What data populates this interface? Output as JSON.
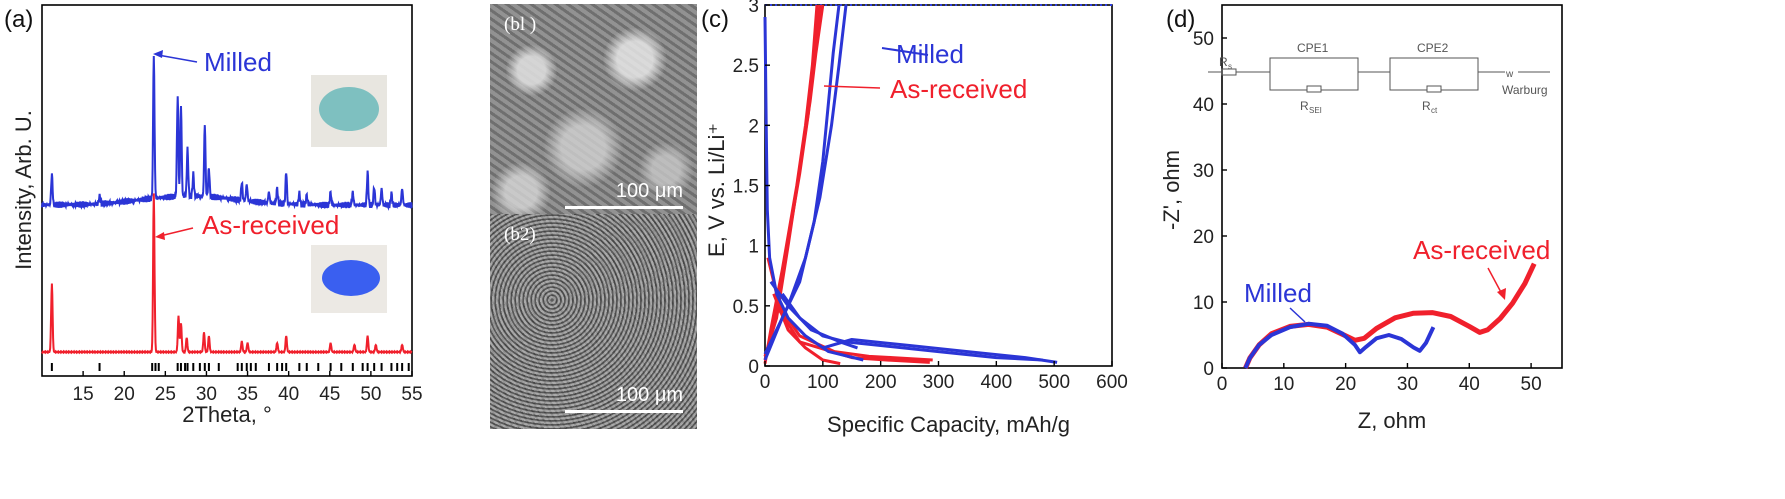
{
  "panels": {
    "a": "(a)",
    "b1": "(bl )",
    "b2": "(b2)",
    "c": "(c)",
    "d": "(d)"
  },
  "colors": {
    "milled": "#2b35d6",
    "as_received": "#f0202c",
    "photo_milled": "#7ec0c0",
    "photo_asreceived": "#3a5ff0"
  },
  "chart_data": [
    {
      "id": "a",
      "type": "line",
      "title": "",
      "xlabel": "2Theta, °",
      "ylabel": "Intensity, Arb. U.",
      "xlim": [
        10,
        55
      ],
      "xticks": [
        15,
        20,
        25,
        30,
        35,
        40,
        45,
        50,
        55
      ],
      "annotations": [
        "Milled",
        "As-received"
      ],
      "series": [
        {
          "name": "Milled",
          "baseline": 1.0,
          "peaks": [
            [
              11.2,
              0.85
            ],
            [
              17.0,
              0.2
            ],
            [
              23.6,
              4.0
            ],
            [
              26.5,
              2.8
            ],
            [
              26.9,
              2.5
            ],
            [
              27.7,
              1.3
            ],
            [
              28.4,
              0.6
            ],
            [
              29.8,
              2.0
            ],
            [
              30.3,
              0.8
            ],
            [
              34.3,
              0.5
            ],
            [
              34.9,
              0.45
            ],
            [
              37.6,
              0.3
            ],
            [
              38.6,
              0.4
            ],
            [
              39.7,
              0.9
            ],
            [
              41.3,
              0.3
            ],
            [
              42.2,
              0.25
            ],
            [
              45.1,
              0.35
            ],
            [
              47.8,
              0.35
            ],
            [
              49.6,
              0.9
            ],
            [
              50.4,
              0.5
            ],
            [
              51.3,
              0.45
            ],
            [
              52.5,
              0.3
            ],
            [
              53.8,
              0.45
            ]
          ]
        },
        {
          "name": "As-received",
          "baseline": 0.0,
          "peaks": [
            [
              11.2,
              1.9
            ],
            [
              23.6,
              4.4
            ],
            [
              26.6,
              1.0
            ],
            [
              26.9,
              0.8
            ],
            [
              27.6,
              0.4
            ],
            [
              29.7,
              0.55
            ],
            [
              30.3,
              0.45
            ],
            [
              34.3,
              0.3
            ],
            [
              35.0,
              0.25
            ],
            [
              38.6,
              0.25
            ],
            [
              39.7,
              0.45
            ],
            [
              45.1,
              0.25
            ],
            [
              48.0,
              0.2
            ],
            [
              49.6,
              0.45
            ],
            [
              50.6,
              0.2
            ],
            [
              53.8,
              0.2
            ]
          ]
        }
      ],
      "reference_ticks": [
        11.2,
        17.0,
        23.4,
        23.8,
        24.2,
        26.5,
        26.9,
        27.4,
        27.7,
        28.4,
        29.2,
        29.8,
        30.3,
        31.5,
        33.8,
        34.3,
        34.9,
        35.4,
        36.0,
        37.6,
        38.6,
        39.2,
        39.7,
        41.3,
        42.2,
        43.6,
        45.1,
        46.4,
        47.8,
        49.0,
        49.6,
        50.4,
        51.3,
        52.5,
        53.2,
        53.8,
        54.6
      ]
    },
    {
      "id": "c",
      "type": "line",
      "title": "",
      "xlabel": "Specific Capacity, mAh/g",
      "ylabel": "E, V vs. Li/Li⁺",
      "xlim": [
        0,
        600
      ],
      "ylim": [
        0,
        3
      ],
      "xticks": [
        0,
        100,
        200,
        300,
        400,
        500,
        600
      ],
      "yticks": [
        0,
        0.5,
        1,
        1.5,
        2,
        2.5,
        3
      ],
      "ytick_labels": [
        "0",
        "0.5",
        "1",
        "1.5",
        "2",
        "2.5",
        "3"
      ],
      "legend": [
        "Milled",
        "As-received"
      ],
      "series": [
        {
          "name": "As-received",
          "curves": [
            [
              [
                0,
                0.02
              ],
              [
                10,
                0.3
              ],
              [
                30,
                0.8
              ],
              [
                55,
                1.5
              ],
              [
                70,
                2.0
              ],
              [
                82,
                2.5
              ],
              [
                90,
                3.0
              ]
            ],
            [
              [
                0,
                0.05
              ],
              [
                15,
                0.35
              ],
              [
                35,
                0.9
              ],
              [
                60,
                1.6
              ],
              [
                75,
                2.1
              ],
              [
                85,
                2.6
              ],
              [
                95,
                3.0
              ]
            ],
            [
              [
                0,
                0.08
              ],
              [
                20,
                0.4
              ],
              [
                40,
                1.0
              ],
              [
                62,
                1.7
              ],
              [
                78,
                2.2
              ],
              [
                88,
                2.6
              ],
              [
                100,
                3.0
              ]
            ],
            [
              [
                15,
                0.6
              ],
              [
                40,
                0.3
              ],
              [
                70,
                0.15
              ],
              [
                100,
                0.05
              ],
              [
                130,
                0.02
              ]
            ],
            [
              [
                20,
                0.5
              ],
              [
                60,
                0.2
              ],
              [
                150,
                0.07
              ],
              [
                210,
                0.05
              ],
              [
                285,
                0.03
              ]
            ],
            [
              [
                5,
                0.9
              ],
              [
                25,
                0.5
              ],
              [
                60,
                0.25
              ],
              [
                120,
                0.12
              ],
              [
                180,
                0.08
              ],
              [
                220,
                0.07
              ],
              [
                290,
                0.05
              ]
            ]
          ]
        },
        {
          "name": "Milled",
          "curves": [
            [
              [
                0,
                2.9
              ],
              [
                2,
                2.0
              ],
              [
                4,
                1.3
              ],
              [
                8,
                0.9
              ],
              [
                20,
                0.6
              ],
              [
                40,
                0.4
              ],
              [
                70,
                0.25
              ],
              [
                110,
                0.12
              ],
              [
                170,
                0.05
              ]
            ],
            [
              [
                0,
                0.05
              ],
              [
                30,
                0.4
              ],
              [
                60,
                0.7
              ],
              [
                85,
                1.2
              ],
              [
                100,
                1.7
              ],
              [
                110,
                2.2
              ],
              [
                118,
                2.6
              ],
              [
                128,
                3.0
              ]
            ],
            [
              [
                0,
                0.1
              ],
              [
                40,
                0.5
              ],
              [
                70,
                0.9
              ],
              [
                95,
                1.4
              ],
              [
                115,
                2.0
              ],
              [
                128,
                2.5
              ],
              [
                140,
                3.0
              ]
            ],
            [
              [
                10,
                0.7
              ],
              [
                40,
                0.5
              ],
              [
                80,
                0.3
              ],
              [
                130,
                0.2
              ],
              [
                160,
                0.15
              ]
            ],
            [
              [
                100,
                0.15
              ],
              [
                150,
                0.22
              ],
              [
                250,
                0.17
              ],
              [
                350,
                0.12
              ],
              [
                450,
                0.07
              ],
              [
                505,
                0.03
              ]
            ],
            [
              [
                30,
                0.6
              ],
              [
                60,
                0.4
              ],
              [
                100,
                0.25
              ],
              [
                140,
                0.2
              ],
              [
                200,
                0.17
              ],
              [
                300,
                0.12
              ],
              [
                400,
                0.07
              ],
              [
                480,
                0.05
              ]
            ]
          ]
        }
      ]
    },
    {
      "id": "d",
      "type": "line",
      "title": "",
      "xlabel": "Z, ohm",
      "ylabel": "-Z', ohm",
      "xlim": [
        0,
        55
      ],
      "ylim": [
        0,
        55
      ],
      "xticks": [
        0,
        10,
        20,
        30,
        40,
        50
      ],
      "yticks": [
        0,
        10,
        20,
        30,
        40,
        50
      ],
      "annotations": [
        "Milled",
        "As-received"
      ],
      "circuit_labels": [
        "R",
        "s",
        "CPE1",
        "CPE2",
        "R",
        "SEI",
        "R",
        "ct",
        "Warburg"
      ],
      "series": [
        {
          "name": "As-received",
          "points": [
            [
              3.8,
              0
            ],
            [
              4.5,
              1.5
            ],
            [
              6,
              3.5
            ],
            [
              8,
              5.2
            ],
            [
              11,
              6.3
            ],
            [
              14,
              6.6
            ],
            [
              17,
              6.2
            ],
            [
              19.5,
              5.1
            ],
            [
              21.5,
              4.2
            ],
            [
              23,
              4.5
            ],
            [
              25,
              6.0
            ],
            [
              28,
              7.6
            ],
            [
              31,
              8.3
            ],
            [
              34,
              8.4
            ],
            [
              37,
              7.8
            ],
            [
              40,
              6.3
            ],
            [
              41.7,
              5.4
            ],
            [
              43,
              5.8
            ],
            [
              45,
              7.5
            ],
            [
              47,
              9.8
            ],
            [
              49,
              12.8
            ],
            [
              50.5,
              15.8
            ]
          ]
        },
        {
          "name": "Milled",
          "points": [
            [
              3.8,
              0
            ],
            [
              4.5,
              1.5
            ],
            [
              6,
              3.5
            ],
            [
              8,
              5.0
            ],
            [
              11,
              6.2
            ],
            [
              14,
              6.7
            ],
            [
              17,
              6.4
            ],
            [
              19.5,
              5.2
            ],
            [
              21.5,
              3.5
            ],
            [
              22.3,
              2.4
            ],
            [
              23.3,
              3.2
            ],
            [
              25,
              4.5
            ],
            [
              27,
              5.0
            ],
            [
              29,
              4.4
            ],
            [
              31,
              3.1
            ],
            [
              32,
              2.6
            ],
            [
              33,
              3.8
            ],
            [
              34.2,
              6.2
            ]
          ]
        }
      ]
    }
  ],
  "sem": {
    "scale_top": "100 μm",
    "scale_bottom": "100 μm"
  }
}
